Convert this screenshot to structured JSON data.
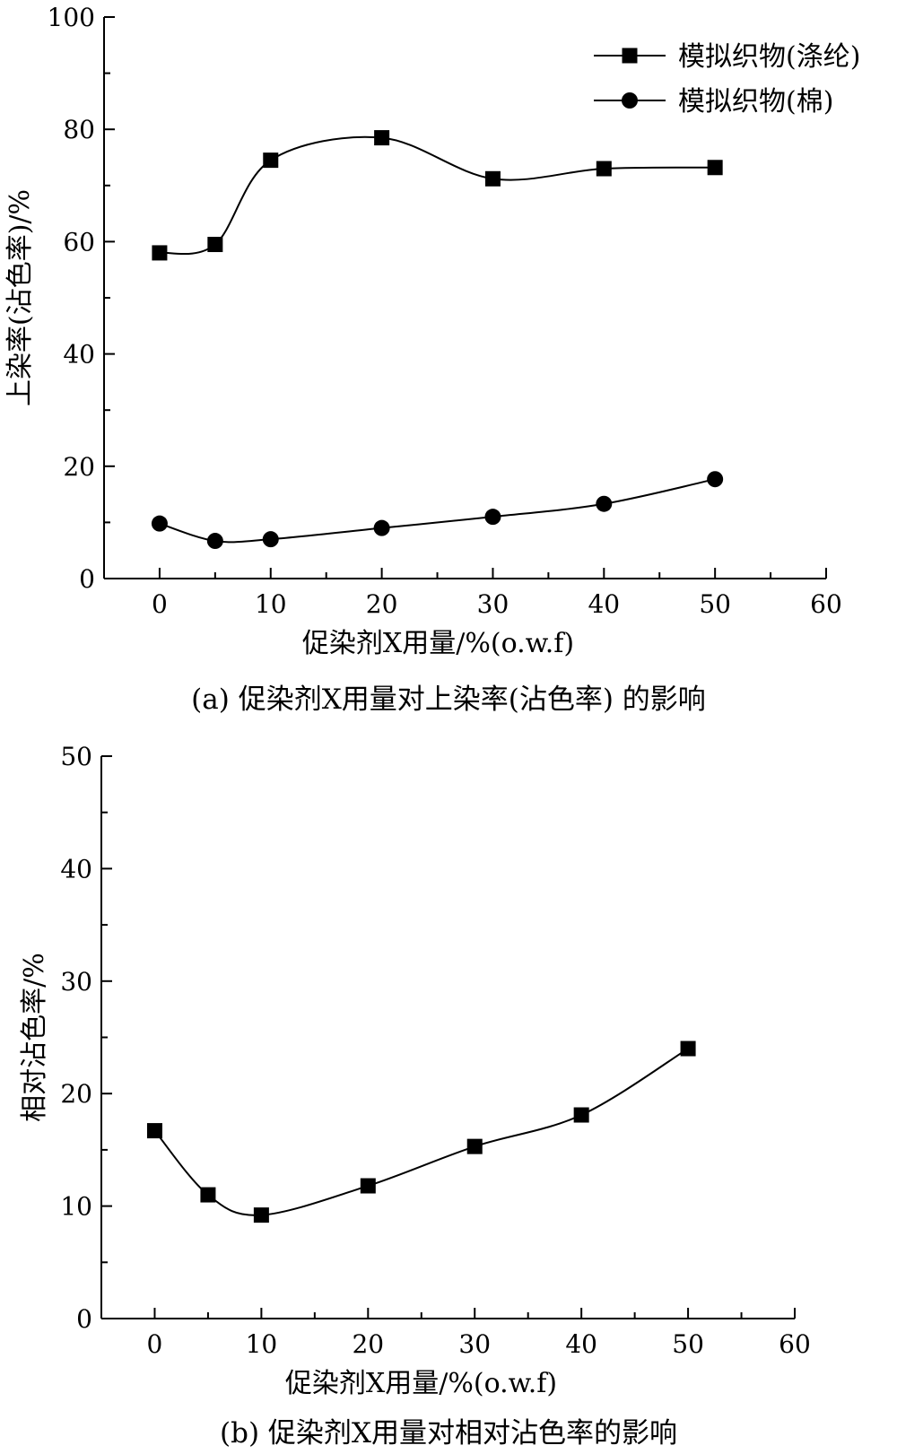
{
  "chart_data": [
    {
      "type": "line",
      "caption": "(a) 促染剂X用量对上染率(沾色率) 的影响",
      "xlabel": "促染剂X用量/%(o.w.f)",
      "ylabel": "上染率(沾色率)/%",
      "xlim": [
        -5,
        60
      ],
      "ylim": [
        0,
        100
      ],
      "xticks": [
        0,
        10,
        20,
        30,
        40,
        50,
        60
      ],
      "yticks": [
        0,
        20,
        40,
        60,
        80,
        100
      ],
      "legend": "top-right",
      "grid": false,
      "x": [
        0,
        5,
        10,
        20,
        30,
        40,
        50
      ],
      "series": [
        {
          "name": "模拟织物(涤纶)",
          "marker": "square",
          "color": "#000000",
          "values": [
            58.0,
            59.5,
            74.5,
            78.5,
            71.2,
            73.0,
            73.2
          ]
        },
        {
          "name": "模拟织物(棉)",
          "marker": "circle",
          "color": "#000000",
          "values": [
            9.8,
            6.7,
            7.0,
            9.0,
            11.0,
            13.3,
            17.7
          ]
        }
      ]
    },
    {
      "type": "line",
      "caption": "(b) 促染剂X用量对相对沾色率的影响",
      "xlabel": "促染剂X用量/%(o.w.f)",
      "ylabel": "相对沾色率/%",
      "xlim": [
        -5,
        60
      ],
      "ylim": [
        0,
        50
      ],
      "xticks": [
        0,
        10,
        20,
        30,
        40,
        50,
        60
      ],
      "yticks": [
        0,
        10,
        20,
        30,
        40,
        50
      ],
      "legend": "none",
      "grid": false,
      "x": [
        0,
        5,
        10,
        20,
        30,
        40,
        50
      ],
      "series": [
        {
          "name": "",
          "marker": "square",
          "color": "#000000",
          "values": [
            16.7,
            11.0,
            9.2,
            11.8,
            15.3,
            18.1,
            24.0
          ]
        }
      ]
    }
  ]
}
